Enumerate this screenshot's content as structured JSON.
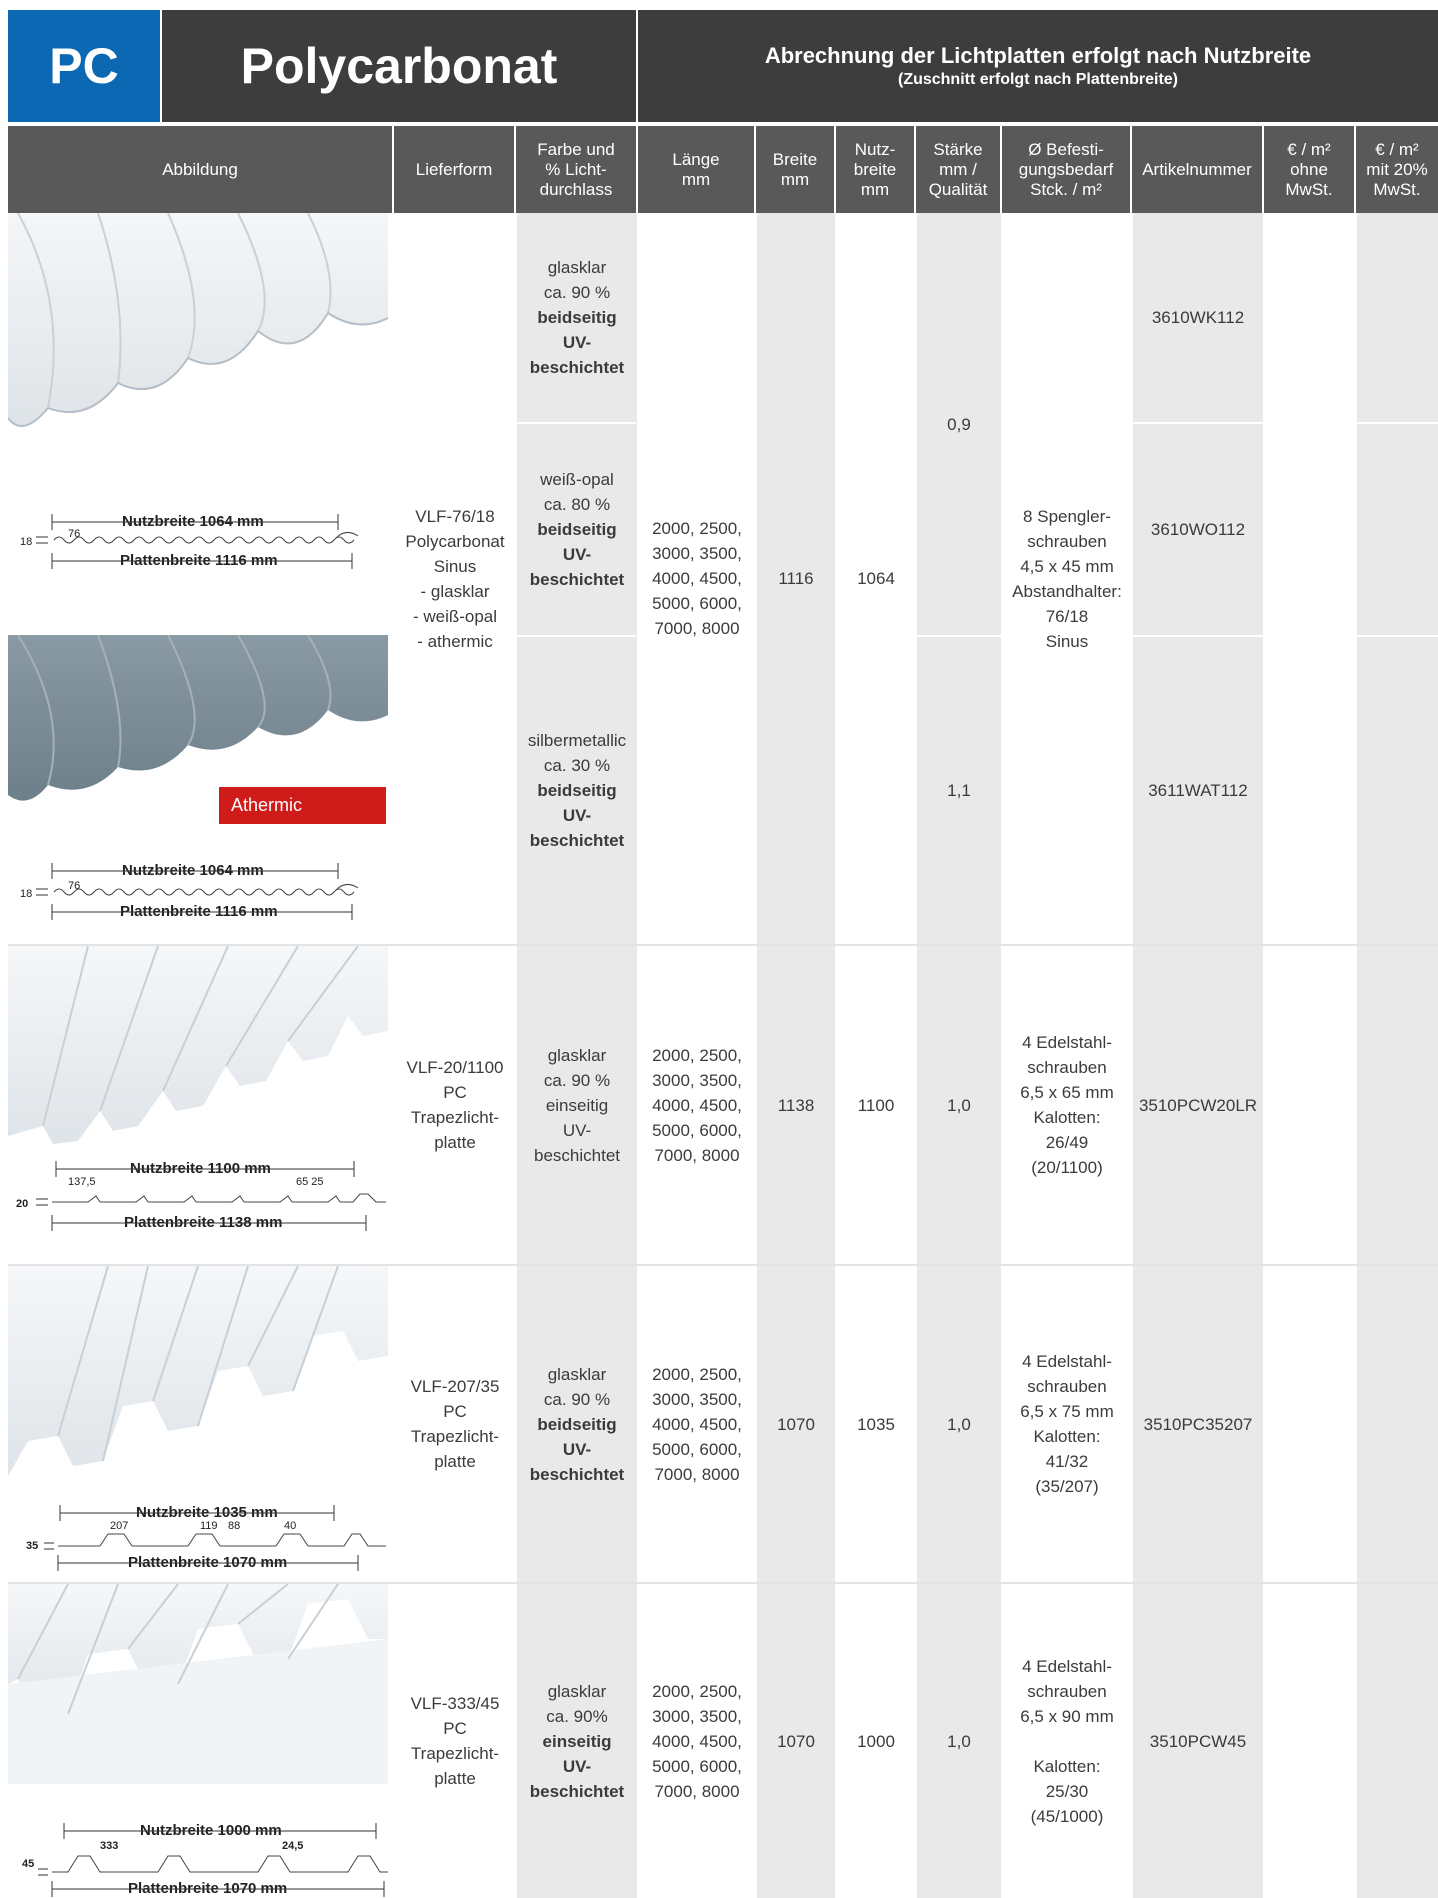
{
  "header": {
    "tag": "PC",
    "title": "Polycarbonat",
    "note_main": "Abrechnung der Lichtplatten erfolgt nach Nutzbreite",
    "note_sub": "(Zuschnitt erfolgt nach Plattenbreite)"
  },
  "columns": {
    "abbildung": "Abbildung",
    "lieferform": "Lieferform",
    "farbe": [
      "Farbe und",
      "% Licht-",
      "durchlass"
    ],
    "laenge": [
      "Länge",
      "mm"
    ],
    "breite": [
      "Breite",
      "mm"
    ],
    "nutzbreite": [
      "Nutz-",
      "breite",
      "mm"
    ],
    "staerke": [
      "Stärke",
      "mm /",
      "Qualität"
    ],
    "befestigung": [
      "Ø Befesti-",
      "gungsbedarf",
      "Stck. / m²"
    ],
    "artikel": "Artikelnummer",
    "preis_ohne": [
      "€ / m²",
      "ohne",
      "MwSt."
    ],
    "preis_mit": [
      "€ / m²",
      "mit 20%",
      "MwSt."
    ]
  },
  "colors": {
    "brand_blue": "#0c68b3",
    "header_dark": "#3d3d3d",
    "colhead_gray": "#595959",
    "cell_gray": "#e9e9e9",
    "athermic_red": "#d01b1b"
  },
  "rows": {
    "sinus": {
      "lieferform": [
        "VLF-76/18",
        "Polycarbonat",
        "Sinus",
        "- glasklar",
        "- weiß-opal",
        "- athermic"
      ],
      "laengen": [
        "2000, 2500,",
        "3000, 3500,",
        "4000, 4500,",
        "5000, 6000,",
        "7000, 8000"
      ],
      "breite": "1116",
      "nutzbreite": "1064",
      "staerke_a": "0,9",
      "staerke_b": "1,1",
      "befestigung": [
        "8 Spengler-",
        "schrauben",
        "4,5 x 45 mm",
        "Abstandhalter:",
        "76/18",
        "Sinus"
      ],
      "variants": [
        {
          "farbe": [
            "glasklar",
            "ca. 90 %"
          ],
          "farbe_bold": [
            "beidseitig",
            "UV-",
            "beschichtet"
          ],
          "artikel": "3610WK112"
        },
        {
          "farbe": [
            "weiß-opal",
            "ca. 80 %"
          ],
          "farbe_bold": [
            "beidseitig",
            "UV-",
            "beschichtet"
          ],
          "artikel": "3610WO112"
        },
        {
          "farbe": [
            "silbermetallic",
            "ca. 30 %"
          ],
          "farbe_bold": [
            "beidseitig",
            "UV-",
            "beschichtet"
          ],
          "artikel": "3611WAT112"
        }
      ],
      "profile_1": {
        "nutz": "Nutzbreite 1064 mm",
        "platten": "Plattenbreite 1116 mm",
        "h": "18",
        "w": "76"
      },
      "profile_2": {
        "nutz": "Nutzbreite 1064 mm",
        "platten": "Plattenbreite 1116 mm",
        "h": "18",
        "w": "76"
      },
      "badge": "Athermic"
    },
    "r2": {
      "lieferform": [
        "VLF-20/1100",
        "PC",
        "Trapezlicht-",
        "platte"
      ],
      "farbe": [
        "glasklar",
        "ca. 90 %",
        "einseitig",
        "UV-",
        "beschichtet"
      ],
      "laengen": [
        "2000, 2500,",
        "3000, 3500,",
        "4000, 4500,",
        "5000, 6000,",
        "7000, 8000"
      ],
      "breite": "1138",
      "nutzbreite": "1100",
      "staerke": "1,0",
      "befestigung": [
        "4 Edelstahl-",
        "schrauben",
        "6,5 x 65 mm",
        "Kalotten:",
        "26/49",
        "(20/1100)"
      ],
      "artikel": "3510PCW20LR",
      "profile": {
        "nutz": "Nutzbreite 1100 mm",
        "platten": "Plattenbreite 1138 mm",
        "h": "20",
        "d1": "137,5",
        "d2": "65 25"
      }
    },
    "r3": {
      "lieferform": [
        "VLF-207/35",
        "PC",
        "Trapezlicht-",
        "platte"
      ],
      "farbe": [
        "glasklar",
        "ca. 90 %"
      ],
      "farbe_bold": [
        "beidseitig",
        "UV-",
        "beschichtet"
      ],
      "laengen": [
        "2000, 2500,",
        "3000, 3500,",
        "4000, 4500,",
        "5000, 6000,",
        "7000, 8000"
      ],
      "breite": "1070",
      "nutzbreite": "1035",
      "staerke": "1,0",
      "befestigung": [
        "4 Edelstahl-",
        "schrauben",
        "6,5 x 75 mm",
        "Kalotten:",
        "41/32",
        "(35/207)"
      ],
      "artikel": "3510PC35207",
      "profile": {
        "nutz": "Nutzbreite 1035 mm",
        "platten": "Plattenbreite 1070 mm",
        "h": "35",
        "d1": "207",
        "d2": "119",
        "d3": "88",
        "d4": "40"
      }
    },
    "r4": {
      "lieferform": [
        "VLF-333/45",
        "PC",
        "Trapezlicht-",
        "platte"
      ],
      "farbe": [
        "glasklar",
        "ca. 90%"
      ],
      "farbe_bold": [
        "einseitig",
        "UV-",
        "beschichtet"
      ],
      "laengen": [
        "2000, 2500,",
        "3000, 3500,",
        "4000, 4500,",
        "5000, 6000,",
        "7000, 8000"
      ],
      "breite": "1070",
      "nutzbreite": "1000",
      "staerke": "1,0",
      "befestigung": [
        "4 Edelstahl-",
        "schrauben",
        "6,5 x 90 mm",
        "",
        "Kalotten:",
        "25/30",
        "(45/1000)"
      ],
      "artikel": "3510PCW45",
      "profile": {
        "nutz": "Nutzbreite 1000 mm",
        "platten": "Plattenbreite 1070 mm",
        "h": "45",
        "d1": "333",
        "d2": "24,5"
      }
    }
  }
}
